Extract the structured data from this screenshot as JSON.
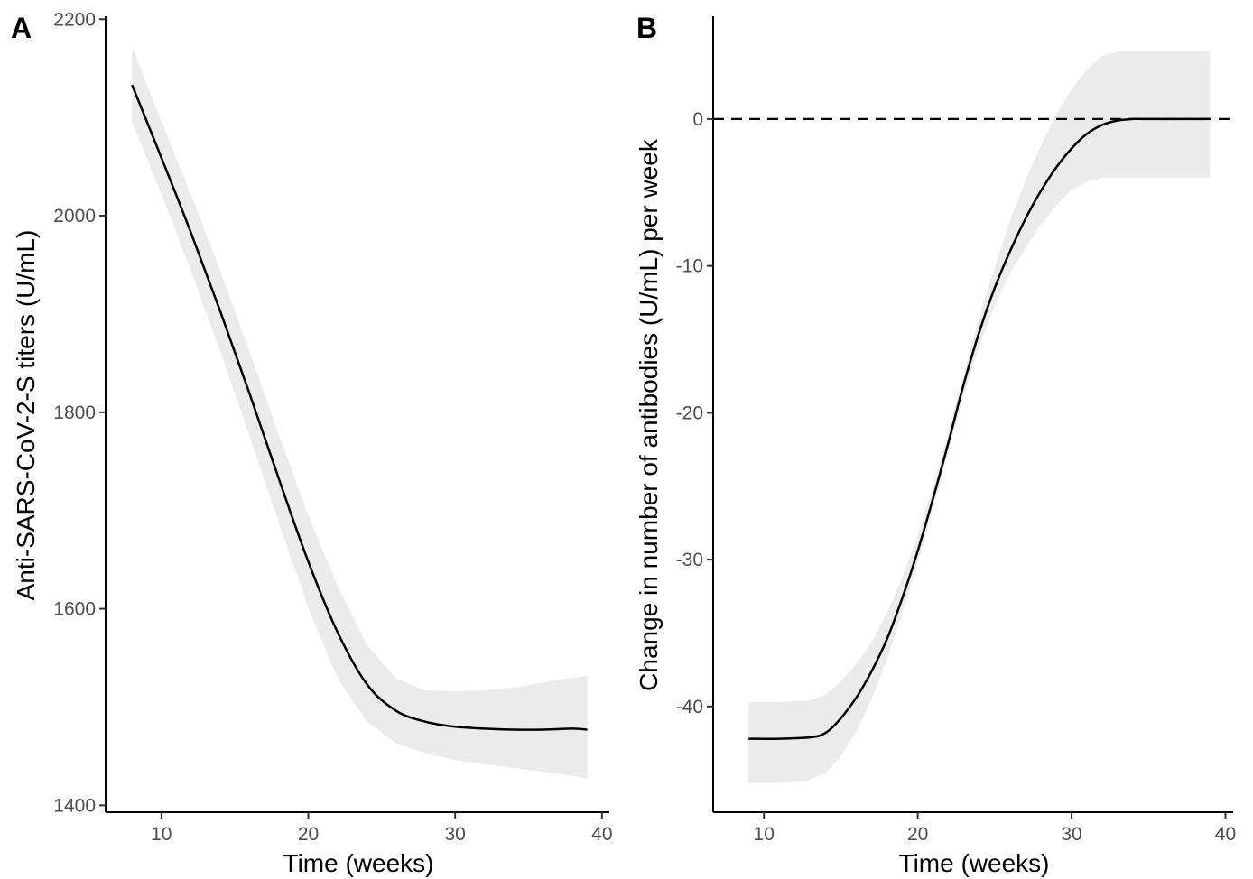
{
  "chart_data": [
    {
      "panel": "A",
      "type": "line",
      "xlabel": "Time (weeks)",
      "ylabel": "Anti-SARS-CoV-2-S titers (U/mL)",
      "xlim": [
        6.2,
        40.5
      ],
      "ylim": [
        1393,
        2203
      ],
      "xticks": [
        10,
        20,
        30,
        40
      ],
      "yticks": [
        1400,
        1600,
        1800,
        2000,
        2200
      ],
      "grid": false,
      "series": [
        {
          "x": [
            8,
            10,
            12,
            14,
            16,
            18,
            20,
            22,
            24,
            26,
            28,
            30,
            32,
            34,
            36,
            38,
            39
          ],
          "y": [
            2133,
            2059,
            1983,
            1903,
            1819,
            1732,
            1648,
            1576,
            1523,
            1496,
            1485,
            1480,
            1478,
            1477,
            1477,
            1478,
            1477
          ],
          "lower": [
            2095,
            2022,
            1944,
            1862,
            1776,
            1687,
            1601,
            1529,
            1485,
            1463,
            1453,
            1446,
            1442,
            1438,
            1434,
            1430,
            1427
          ],
          "upper": [
            2172,
            2096,
            2022,
            1944,
            1862,
            1777,
            1695,
            1623,
            1563,
            1529,
            1517,
            1516,
            1517,
            1520,
            1525,
            1530,
            1532
          ]
        }
      ],
      "colors": {
        "line": "#000000",
        "ribbon": "#ebebeb"
      }
    },
    {
      "panel": "B",
      "type": "line",
      "xlabel": "Time (weeks)",
      "ylabel": "Change in number of antibodies (U/mL) per week",
      "xlim": [
        6.7,
        40.5
      ],
      "ylim": [
        -47.2,
        7
      ],
      "xticks": [
        10,
        20,
        30,
        40
      ],
      "yticks": [
        -40,
        -30,
        -20,
        -10,
        0
      ],
      "grid": false,
      "reference_line": {
        "y": 0,
        "style": "dashed"
      },
      "series": [
        {
          "x": [
            9,
            11,
            13,
            14,
            15,
            16,
            17,
            18,
            19,
            20,
            21,
            22,
            23,
            24,
            25,
            26,
            27,
            28,
            29,
            30,
            31,
            32,
            33,
            34,
            35,
            36,
            37,
            38,
            39
          ],
          "y": [
            -42.2,
            -42.2,
            -42.1,
            -41.8,
            -40.8,
            -39.4,
            -37.6,
            -35.4,
            -32.6,
            -29.4,
            -25.8,
            -22.0,
            -18.0,
            -14.5,
            -11.5,
            -9.0,
            -6.8,
            -4.9,
            -3.3,
            -2.0,
            -1.0,
            -0.4,
            -0.1,
            0.0,
            0.0,
            0.0,
            0.0,
            0.0,
            0.0
          ],
          "lower": [
            -45.2,
            -45.2,
            -45.0,
            -44.5,
            -43.4,
            -41.7,
            -39.5,
            -36.8,
            -33.6,
            -30.2,
            -26.5,
            -22.6,
            -18.8,
            -15.4,
            -12.7,
            -10.5,
            -8.8,
            -7.2,
            -5.9,
            -4.8,
            -4.3,
            -4.0,
            -4.0,
            -4.0,
            -4.0,
            -4.0,
            -4.0,
            -4.0,
            -4.0
          ],
          "upper": [
            -39.7,
            -39.7,
            -39.6,
            -39.2,
            -38.3,
            -37.1,
            -35.6,
            -33.6,
            -31.2,
            -28.4,
            -25.0,
            -21.3,
            -17.3,
            -13.5,
            -10.1,
            -6.9,
            -4.2,
            -1.8,
            0.3,
            2.0,
            3.4,
            4.3,
            4.6,
            4.6,
            4.6,
            4.6,
            4.6,
            4.6,
            4.6
          ]
        }
      ],
      "colors": {
        "line": "#000000",
        "ribbon": "#ebebeb",
        "reference_line": "#000000"
      }
    }
  ]
}
